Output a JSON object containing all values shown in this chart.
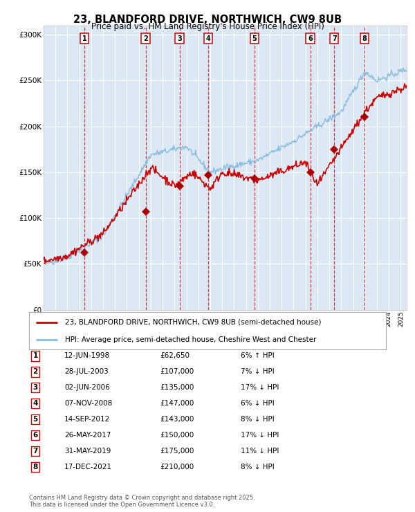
{
  "title": "23, BLANDFORD DRIVE, NORTHWICH, CW9 8UB",
  "subtitle": "Price paid vs. HM Land Registry's House Price Index (HPI)",
  "background_color": "#dce9f5",
  "plot_bg_color": "#dce9f5",
  "hpi_line_color": "#88bbdd",
  "price_line_color": "#cc0000",
  "marker_color": "#aa0000",
  "sales": [
    {
      "num": 1,
      "date_label": "12-JUN-1998",
      "year": 1998.45,
      "price": 62650,
      "pct": "6%",
      "dir": "↑"
    },
    {
      "num": 2,
      "date_label": "28-JUL-2003",
      "year": 2003.57,
      "price": 107000,
      "pct": "7%",
      "dir": "↓"
    },
    {
      "num": 3,
      "date_label": "02-JUN-2006",
      "year": 2006.42,
      "price": 135000,
      "pct": "17%",
      "dir": "↓"
    },
    {
      "num": 4,
      "date_label": "07-NOV-2008",
      "year": 2008.85,
      "price": 147000,
      "pct": "6%",
      "dir": "↓"
    },
    {
      "num": 5,
      "date_label": "14-SEP-2012",
      "year": 2012.7,
      "price": 143000,
      "pct": "8%",
      "dir": "↓"
    },
    {
      "num": 6,
      "date_label": "26-MAY-2017",
      "year": 2017.4,
      "price": 150000,
      "pct": "17%",
      "dir": "↓"
    },
    {
      "num": 7,
      "date_label": "31-MAY-2019",
      "year": 2019.42,
      "price": 175000,
      "pct": "11%",
      "dir": "↓"
    },
    {
      "num": 8,
      "date_label": "17-DEC-2021",
      "year": 2021.96,
      "price": 210000,
      "pct": "8%",
      "dir": "↓"
    }
  ],
  "legend_label_red": "23, BLANDFORD DRIVE, NORTHWICH, CW9 8UB (semi-detached house)",
  "legend_label_blue": "HPI: Average price, semi-detached house, Cheshire West and Chester",
  "footer": "Contains HM Land Registry data © Crown copyright and database right 2025.\nThis data is licensed under the Open Government Licence v3.0.",
  "xlim": [
    1995,
    2025.5
  ],
  "ylim": [
    0,
    310000
  ],
  "yticks": [
    0,
    50000,
    100000,
    150000,
    200000,
    250000,
    300000
  ],
  "ytick_labels": [
    "£0",
    "£50K",
    "£100K",
    "£150K",
    "£200K",
    "£250K",
    "£300K"
  ]
}
